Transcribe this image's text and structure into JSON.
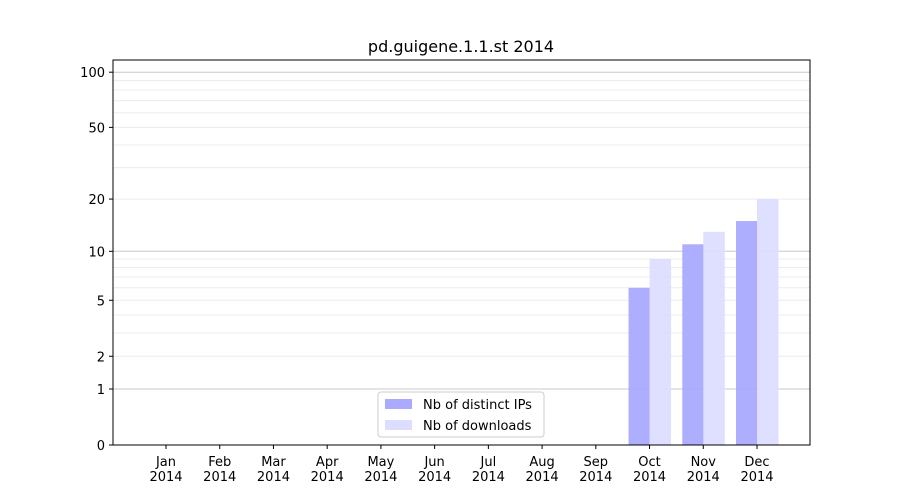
{
  "chart_data": {
    "type": "bar",
    "title": "pd.guigene.1.1.st 2014",
    "xlabel": "",
    "ylabel": "",
    "yscale": "log(1+y)",
    "ylim": [
      0,
      110
    ],
    "yticks": [
      0,
      1,
      2,
      5,
      10,
      20,
      50,
      100
    ],
    "grid": true,
    "legend_position": "lower-center",
    "categories": [
      "Jan\n2014",
      "Feb\n2014",
      "Mar\n2014",
      "Apr\n2014",
      "May\n2014",
      "Jun\n2014",
      "Jul\n2014",
      "Aug\n2014",
      "Sep\n2014",
      "Oct\n2014",
      "Nov\n2014",
      "Dec\n2014"
    ],
    "series": [
      {
        "name": "Nb of distinct IPs",
        "color": "#aaaaff",
        "values": [
          0,
          0,
          0,
          0,
          0,
          0,
          0,
          0,
          0,
          6,
          11,
          15
        ]
      },
      {
        "name": "Nb of downloads",
        "color": "#ddddff",
        "values": [
          0,
          0,
          0,
          0,
          0,
          0,
          0,
          0,
          0,
          9,
          13,
          20
        ]
      }
    ]
  }
}
